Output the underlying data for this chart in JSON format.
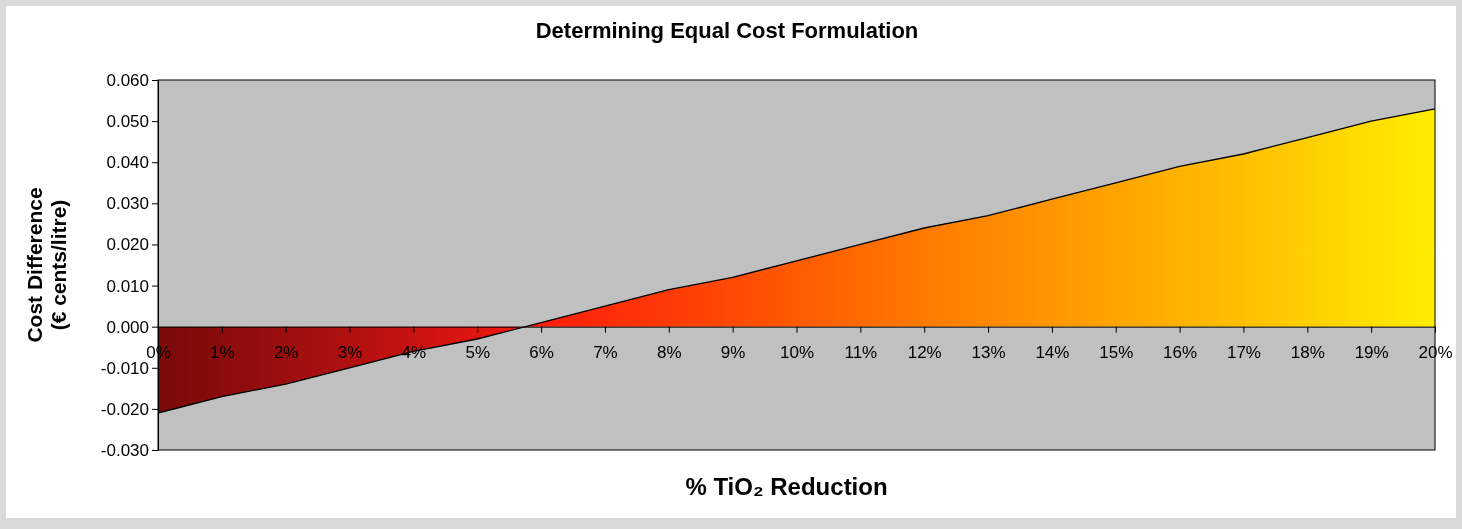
{
  "chart_data": {
    "type": "area",
    "title": "Determining Equal Cost Formulation",
    "xlabel": "% TiO₂ Reduction",
    "ylabel": "Cost Difference\n(€ cents/litre)",
    "categories": [
      "0%",
      "1%",
      "2%",
      "3%",
      "4%",
      "5%",
      "6%",
      "7%",
      "8%",
      "9%",
      "10%",
      "11%",
      "12%",
      "13%",
      "14%",
      "15%",
      "16%",
      "17%",
      "18%",
      "19%",
      "20%"
    ],
    "series": [
      {
        "values": [
          -0.021,
          -0.017,
          -0.014,
          -0.01,
          -0.006,
          -0.003,
          0.001,
          0.005,
          0.009,
          0.012,
          0.016,
          0.02,
          0.024,
          0.027,
          0.031,
          0.035,
          0.039,
          0.042,
          0.046,
          0.05,
          0.053
        ],
        "colors": [
          "#7a0a0a",
          "#8a0c0c",
          "#9c0e0e",
          "#b01010",
          "#c81212",
          "#e01510",
          "#ff1e0a",
          "#ff2c08",
          "#ff3a06",
          "#ff4a04",
          "#ff5a02",
          "#ff6a00",
          "#ff7a00",
          "#ff8800",
          "#ff9600",
          "#ffa400",
          "#ffb200",
          "#ffc000",
          "#ffcf00",
          "#ffde00",
          "#ffee00"
        ]
      }
    ],
    "ylim": [
      -0.03,
      0.06
    ],
    "yticks": [
      {
        "value": -0.03,
        "label": "-0.030"
      },
      {
        "value": -0.02,
        "label": "-0.020"
      },
      {
        "value": -0.01,
        "label": "-0.010"
      },
      {
        "value": 0,
        "label": "0.000"
      },
      {
        "value": 0.01,
        "label": "0.010"
      },
      {
        "value": 0.02,
        "label": "0.020"
      },
      {
        "value": 0.03,
        "label": "0.030"
      },
      {
        "value": 0.04,
        "label": "0.040"
      },
      {
        "value": 0.05,
        "label": "0.050"
      },
      {
        "value": 0.06,
        "label": "0.060"
      }
    ],
    "grid": false
  }
}
